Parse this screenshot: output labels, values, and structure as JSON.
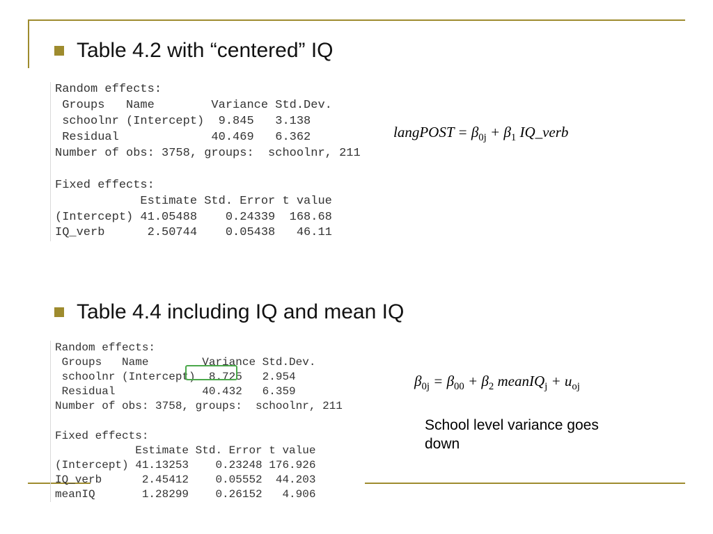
{
  "colors": {
    "accent": "#9e8b2e",
    "highlight_border": "#4aa84a"
  },
  "bullet1": {
    "text": "Table 4.2 with “centered” IQ"
  },
  "bullet2": {
    "text": "Table 4.4 including IQ and mean IQ"
  },
  "code1": {
    "type": "code-output",
    "lines": [
      "Random effects:",
      " Groups   Name        Variance Std.Dev.",
      " schoolnr (Intercept)  9.845   3.138",
      " Residual             40.469   6.362",
      "Number of obs: 3758, groups:  schoolnr, 211",
      "",
      "Fixed effects:",
      "            Estimate Std. Error t value",
      "(Intercept) 41.05488    0.24339  168.68",
      "IQ_verb      2.50744    0.05438   46.11"
    ]
  },
  "code2": {
    "type": "code-output",
    "lines": [
      "Random effects:",
      " Groups   Name        Variance Std.Dev.",
      " schoolnr (Intercept)  8.725   2.954",
      " Residual             40.432   6.359",
      "Number of obs: 3758, groups:  schoolnr, 211",
      "",
      "Fixed effects:",
      "            Estimate Std. Error t value",
      "(Intercept) 41.13253    0.23248 176.926",
      "IQ_verb      2.45412    0.05552  44.203",
      "meanIQ       1.28299    0.26152   4.906"
    ]
  },
  "eqn1": {
    "lhs": "langPOST",
    "rhs_b0": "β",
    "rhs_b0_sub": "0j",
    "plus1": " + ",
    "rhs_b1": "β",
    "rhs_b1_sub": "1",
    "rhs_x1": "IQ_verb"
  },
  "eqn2": {
    "lhs_b": "β",
    "lhs_sub": "0j",
    "eq": " = ",
    "b00": "β",
    "b00_sub": "00",
    "plus1": " + ",
    "b2": "β",
    "b2_sub": "2",
    "x2": "meanIQ",
    "x2_sub": "j",
    "plus2": " + ",
    "u": "u",
    "u_sub": "oj"
  },
  "note1": {
    "text": "School level variance goes down"
  },
  "highlight": {
    "target_value": "8.725"
  }
}
